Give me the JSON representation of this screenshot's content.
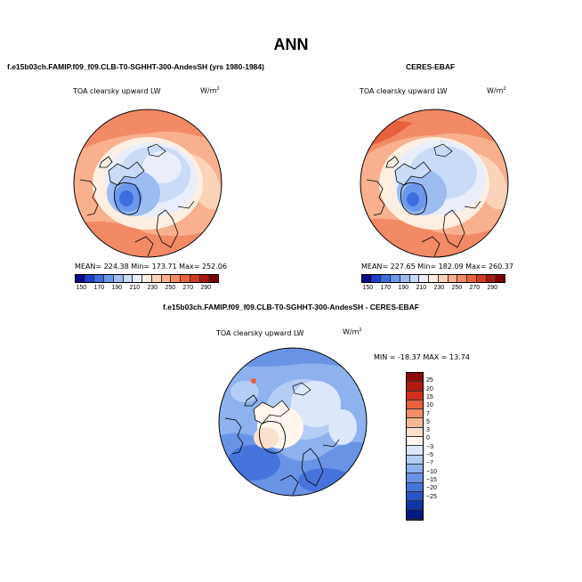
{
  "title": "ANN",
  "panels": {
    "model": {
      "heading": "f.e15b03ch.FAMIP.f09_f09.CLB-T0-SGHHT-300-AndesSH (yrs 1980-1984)",
      "var": "TOA clearsky upward LW",
      "units": "W/m",
      "units_sup": "2",
      "stats": "MEAN= 224.38    Min= 173.71    Max= 252.06",
      "ticks": [
        "150",
        "170",
        "190",
        "210",
        "230",
        "250",
        "270",
        "290"
      ]
    },
    "obs": {
      "heading": "CERES-EBAF",
      "var": "TOA clearsky upward LW",
      "units": "W/m",
      "units_sup": "2",
      "stats": "MEAN= 227.65    Min= 182.09    Max= 260.37",
      "ticks": [
        "150",
        "170",
        "190",
        "210",
        "230",
        "250",
        "270",
        "290"
      ]
    },
    "diff": {
      "heading": "f.e15b03ch.FAMIP.f09_f09.CLB-T0-SGHHT-300-AndesSH - CERES-EBAF",
      "var": "TOA clearsky upward LW",
      "units": "W/m",
      "units_sup": "2",
      "stats": "MIN = -18.37  MAX =  13.74",
      "ticks": [
        "25",
        "20",
        "15",
        "10",
        "7",
        "5",
        "3",
        "0",
        "−3",
        "−5",
        "−7",
        "−10",
        "−15",
        "−20",
        "−25"
      ]
    }
  },
  "colors": {
    "abs_scale": [
      "#08088a",
      "#1f3fd0",
      "#3d6ee0",
      "#6b98ec",
      "#9dbcf2",
      "#c9dbf6",
      "#e9eefa",
      "#fdefe2",
      "#fbd3b8",
      "#f8b08e",
      "#f28a66",
      "#e7613f",
      "#cf3b23",
      "#aa1810",
      "#7a0000"
    ],
    "diff_scale": [
      "#8c0a0a",
      "#b01a12",
      "#d22f1c",
      "#e8603c",
      "#f28e6b",
      "#f8b898",
      "#fce0cf",
      "#fff6ee",
      "#dce7fa",
      "#b4cdf4",
      "#8eb2ee",
      "#6994e6",
      "#4774dc",
      "#2a55c8",
      "#0e34a8",
      "#031a80"
    ]
  }
}
